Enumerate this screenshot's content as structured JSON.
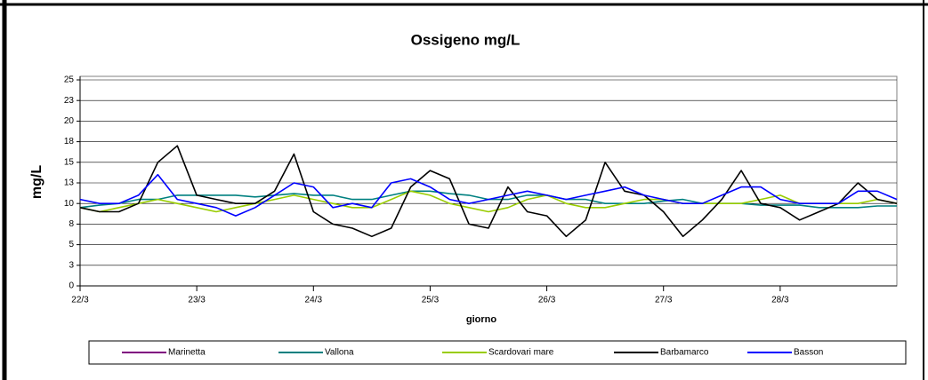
{
  "chart_data": {
    "type": "line",
    "title": "Ossigeno mg/L",
    "x_label": "giorno",
    "y_label": "mg/L",
    "x": [
      0,
      4,
      8,
      12,
      16,
      20,
      24,
      28,
      32,
      36,
      40,
      44,
      48,
      52,
      56,
      60,
      64,
      68,
      72,
      76,
      80,
      84,
      88,
      92,
      96,
      100,
      104,
      108,
      112,
      116,
      120,
      124,
      128,
      132,
      136,
      140,
      144,
      148,
      152,
      156,
      160,
      164,
      168
    ],
    "xlim": [
      0,
      168
    ],
    "xticks": [
      {
        "value": 0,
        "label": "22/3"
      },
      {
        "value": 24,
        "label": "23/3"
      },
      {
        "value": 48,
        "label": "24/3"
      },
      {
        "value": 72,
        "label": "25/3"
      },
      {
        "value": 96,
        "label": "26/3"
      },
      {
        "value": 120,
        "label": "27/3"
      },
      {
        "value": 144,
        "label": "28/3"
      }
    ],
    "ylim": [
      0,
      25
    ],
    "yticks": [
      0,
      {
        "value": 2.5,
        "label": "3"
      },
      5,
      {
        "value": 7.5,
        "label": "8"
      },
      10,
      {
        "value": 12.5,
        "label": "13"
      },
      15,
      {
        "value": 17.5,
        "label": "18"
      },
      20,
      {
        "value": 22.5,
        "label": "23"
      },
      25
    ],
    "grid": true,
    "legend": "bottom",
    "series": [
      {
        "name": "Marinetta",
        "color": "#800080",
        "values": [
          null,
          null,
          null,
          null,
          null,
          null,
          null,
          null,
          null,
          null,
          null,
          null,
          null,
          null,
          null,
          null,
          null,
          null,
          null,
          null,
          null,
          null,
          null,
          null,
          null,
          null,
          null,
          null,
          null,
          null,
          null,
          null,
          null,
          null,
          null,
          null,
          null,
          null,
          null,
          null,
          null,
          null,
          null
        ]
      },
      {
        "name": "Vallona",
        "color": "#008080",
        "values": [
          9.5,
          9.8,
          10,
          10.5,
          10.5,
          11,
          11,
          11,
          11,
          10.8,
          11,
          11.2,
          11,
          11,
          10.5,
          10.5,
          11,
          11.5,
          11.5,
          11.2,
          11,
          10.5,
          10.5,
          11,
          11,
          10.5,
          10.5,
          10,
          10,
          10,
          10.3,
          10.5,
          10,
          10,
          10,
          9.8,
          9.8,
          9.8,
          9.5,
          9.5,
          9.5,
          9.7,
          9.7
        ]
      },
      {
        "name": "Scardovari mare",
        "color": "#99cc00",
        "values": [
          9.5,
          9,
          9.5,
          10,
          10.5,
          10,
          9.5,
          9,
          9.5,
          10,
          10.5,
          11,
          10.5,
          10,
          9.5,
          9.5,
          10.5,
          11.5,
          11,
          10,
          9.5,
          9,
          9.5,
          10.5,
          11,
          10,
          9.5,
          9.5,
          10,
          10.5,
          10.5,
          10,
          10,
          10,
          10,
          10.5,
          11,
          10,
          10,
          10,
          10,
          10.5,
          10
        ]
      },
      {
        "name": "Barbamarco",
        "color": "#000000",
        "values": [
          9.5,
          9,
          9,
          10,
          15,
          17,
          11,
          10.5,
          10,
          10,
          11.5,
          16,
          9,
          7.5,
          7,
          6,
          7,
          12,
          14,
          13,
          7.5,
          7,
          12,
          9,
          8.5,
          6,
          8,
          15,
          11.5,
          11,
          9,
          6,
          8,
          10.5,
          14,
          10,
          9.5,
          8,
          9,
          10,
          12.5,
          10.5,
          10
        ]
      },
      {
        "name": "Basson",
        "color": "#0000ff",
        "values": [
          10.5,
          10,
          10,
          11,
          13.5,
          10.5,
          10,
          9.5,
          8.5,
          9.5,
          11,
          12.5,
          12,
          9.5,
          10,
          9.5,
          12.5,
          13,
          12,
          10.5,
          10,
          10.5,
          11,
          11.5,
          11,
          10.5,
          11,
          11.5,
          12,
          11,
          10.5,
          10,
          10,
          11,
          12,
          12,
          10.5,
          10,
          10,
          10,
          11.5,
          11.5,
          10.5
        ]
      }
    ]
  }
}
